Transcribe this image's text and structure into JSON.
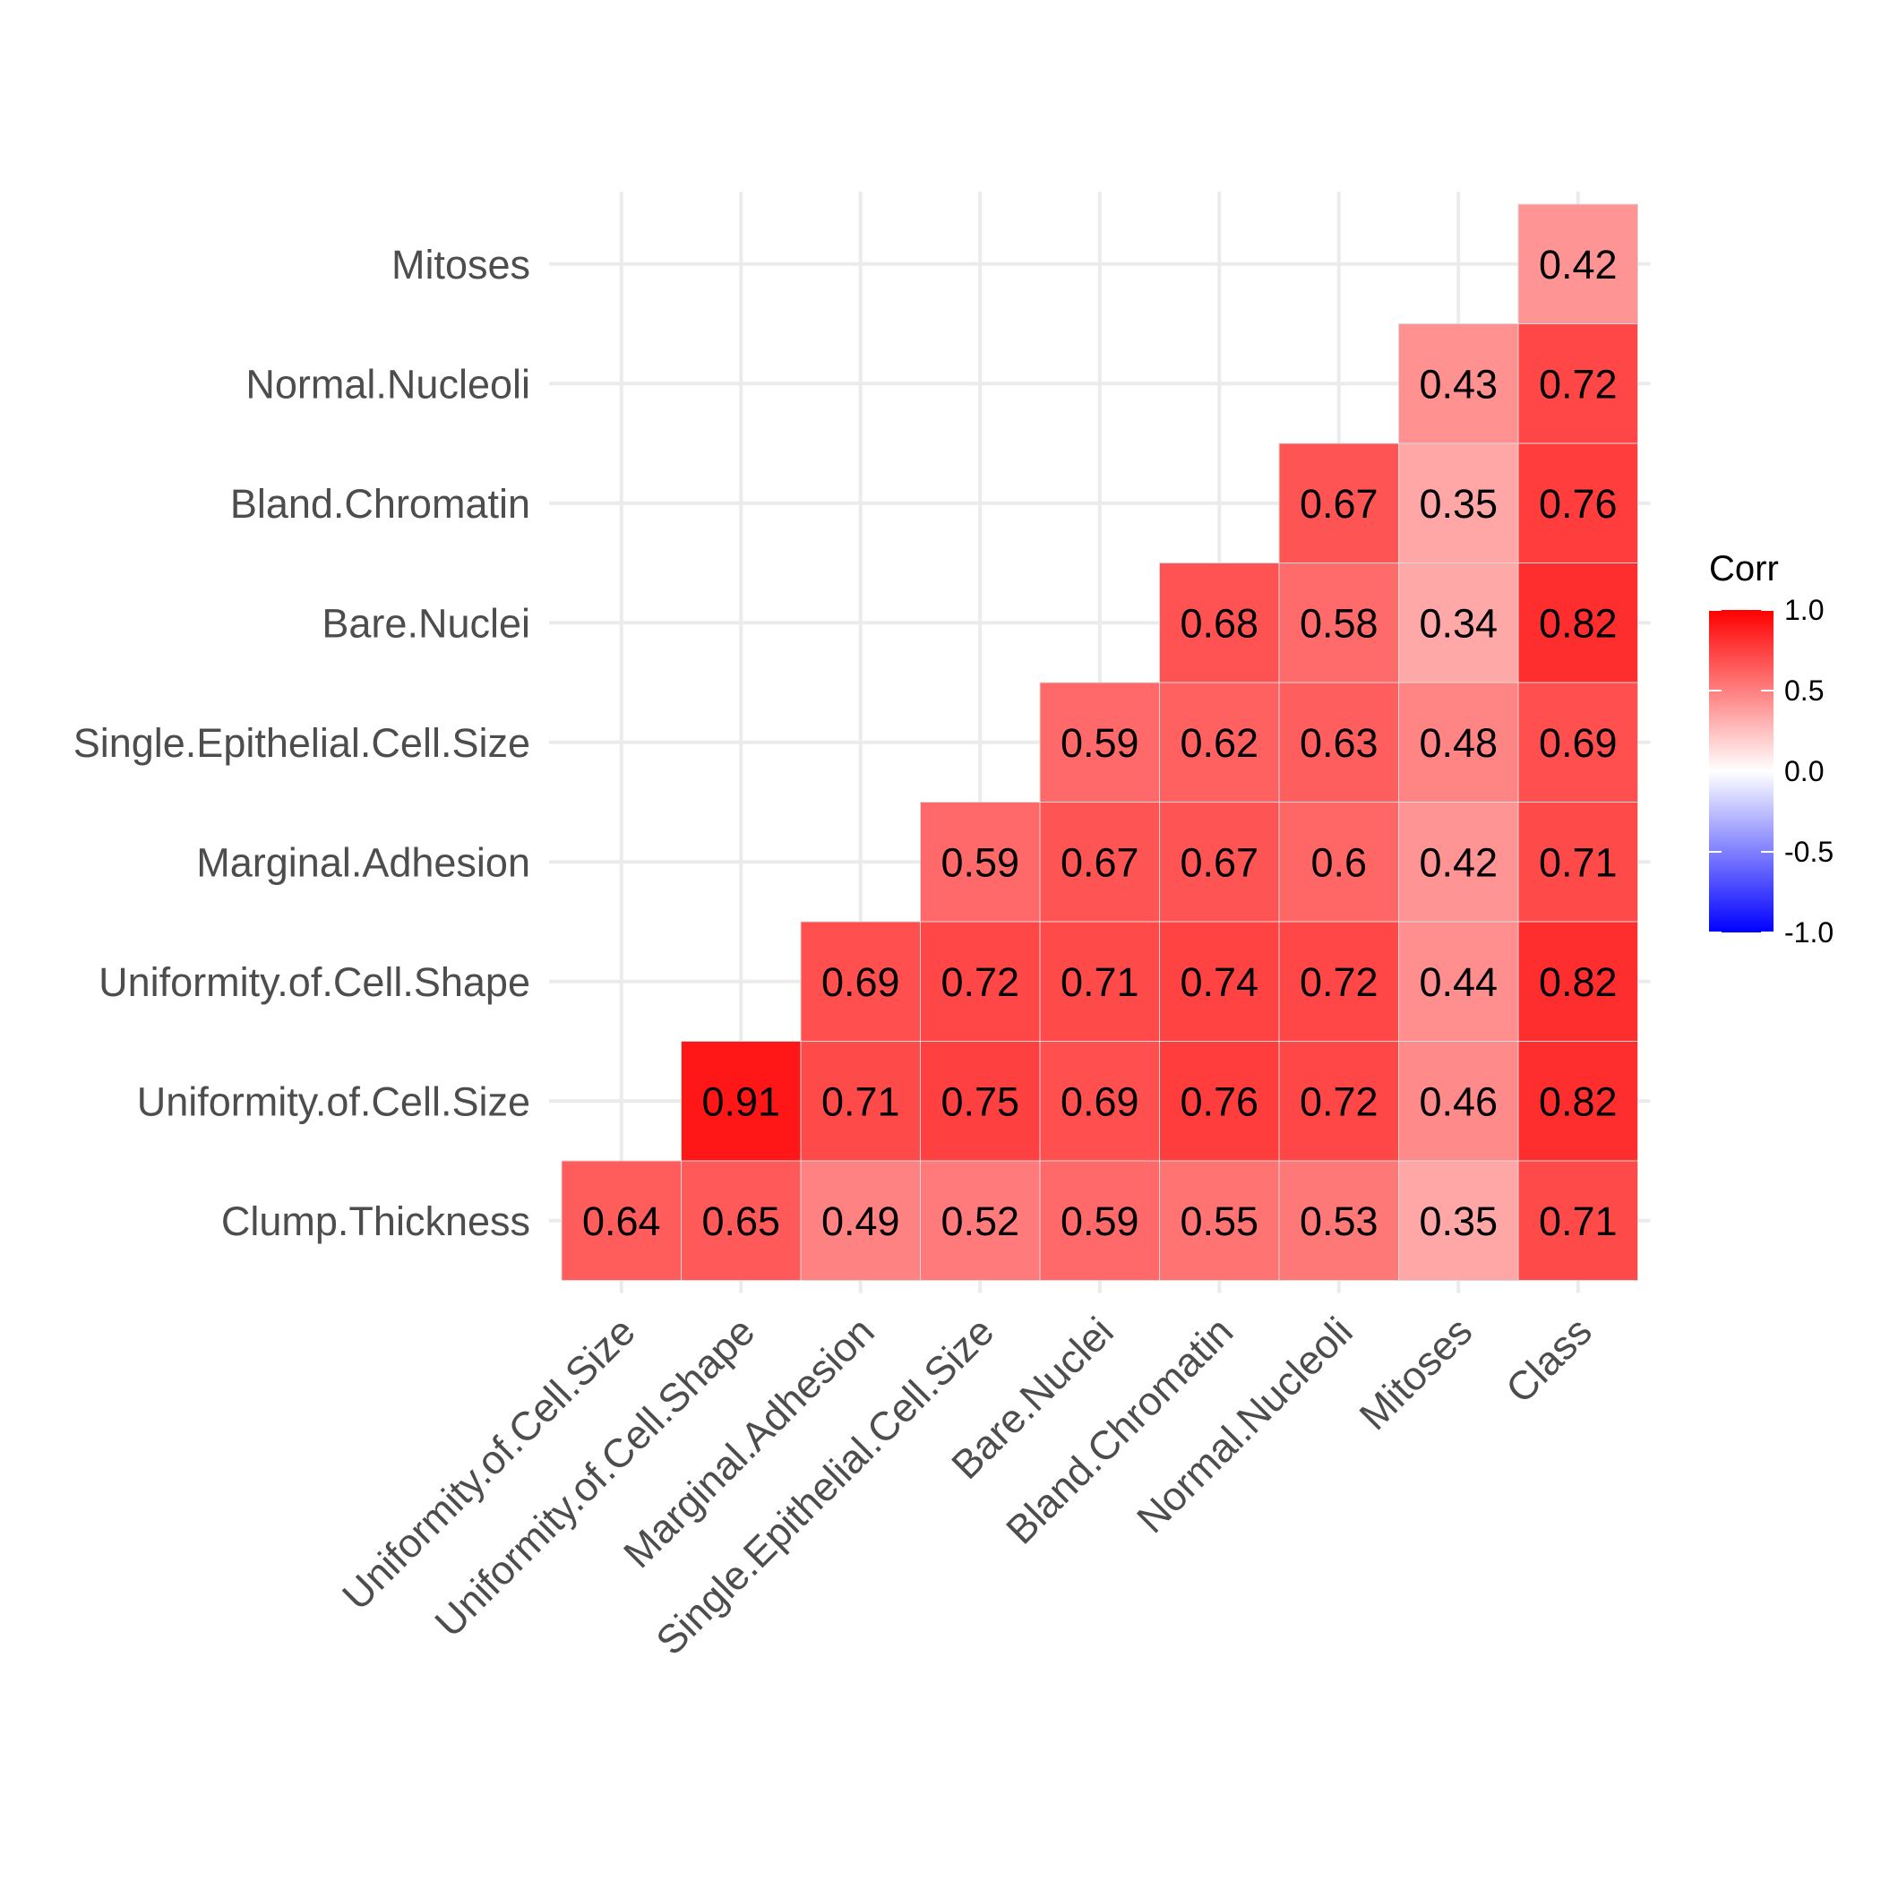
{
  "chart_data": {
    "type": "heatmap",
    "title": "",
    "xlabel": "",
    "ylabel": "",
    "x_categories": [
      "Uniformity.of.Cell.Size",
      "Uniformity.of.Cell.Shape",
      "Marginal.Adhesion",
      "Single.Epithelial.Cell.Size",
      "Bare.Nuclei",
      "Bland.Chromatin",
      "Normal.Nucleoli",
      "Mitoses",
      "Class"
    ],
    "y_categories": [
      "Clump.Thickness",
      "Uniformity.of.Cell.Size",
      "Uniformity.of.Cell.Shape",
      "Marginal.Adhesion",
      "Single.Epithelial.Cell.Size",
      "Bare.Nuclei",
      "Bland.Chromatin",
      "Normal.Nucleoli",
      "Mitoses"
    ],
    "values": [
      [
        0.64,
        0.65,
        0.49,
        0.52,
        0.59,
        0.55,
        0.53,
        0.35,
        0.71
      ],
      [
        null,
        0.91,
        0.71,
        0.75,
        0.69,
        0.76,
        0.72,
        0.46,
        0.82
      ],
      [
        null,
        null,
        0.69,
        0.72,
        0.71,
        0.74,
        0.72,
        0.44,
        0.82
      ],
      [
        null,
        null,
        null,
        0.59,
        0.67,
        0.67,
        0.6,
        0.42,
        0.71
      ],
      [
        null,
        null,
        null,
        null,
        0.59,
        0.62,
        0.63,
        0.48,
        0.69
      ],
      [
        null,
        null,
        null,
        null,
        null,
        0.68,
        0.58,
        0.34,
        0.82
      ],
      [
        null,
        null,
        null,
        null,
        null,
        null,
        0.67,
        0.35,
        0.76
      ],
      [
        null,
        null,
        null,
        null,
        null,
        null,
        null,
        0.43,
        0.72
      ],
      [
        null,
        null,
        null,
        null,
        null,
        null,
        null,
        null,
        0.42
      ]
    ],
    "legend": {
      "title": "Corr",
      "position": "right",
      "ticks": [
        1.0,
        0.5,
        0.0,
        -0.5,
        -1.0
      ],
      "tick_labels": [
        "1.0",
        "0.5",
        "0.0",
        "-0.5",
        "-1.0"
      ],
      "range": [
        -1,
        1
      ]
    },
    "colors": {
      "low": "#0000ff",
      "mid": "#ffffff",
      "high": "#ff0000"
    },
    "grid": true
  }
}
